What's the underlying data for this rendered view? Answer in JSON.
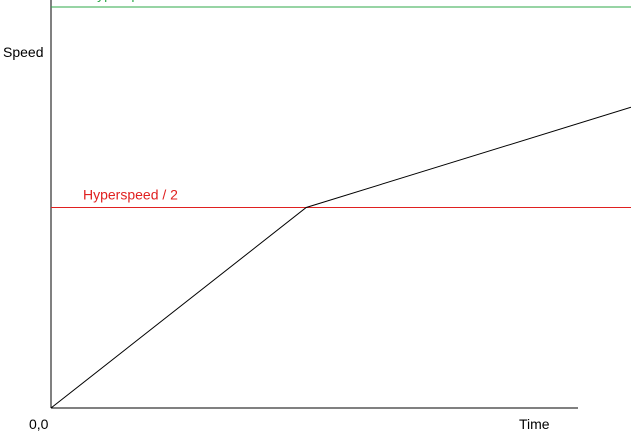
{
  "chart_data": {
    "type": "line",
    "xlabel": "Time",
    "ylabel": "Speed",
    "origin_label": "0,0",
    "grid": false,
    "legend": "none",
    "reference_lines": [
      {
        "label": "Hyperspeed",
        "y": 1.0,
        "color": "#2fa84a"
      },
      {
        "label": "Hyperspeed / 2",
        "y": 0.5,
        "color": "#e02020"
      }
    ],
    "series": [
      {
        "color": "#000000",
        "x": [
          0,
          0.44,
          1.0
        ],
        "y": [
          0,
          0.5,
          0.75
        ]
      }
    ]
  }
}
